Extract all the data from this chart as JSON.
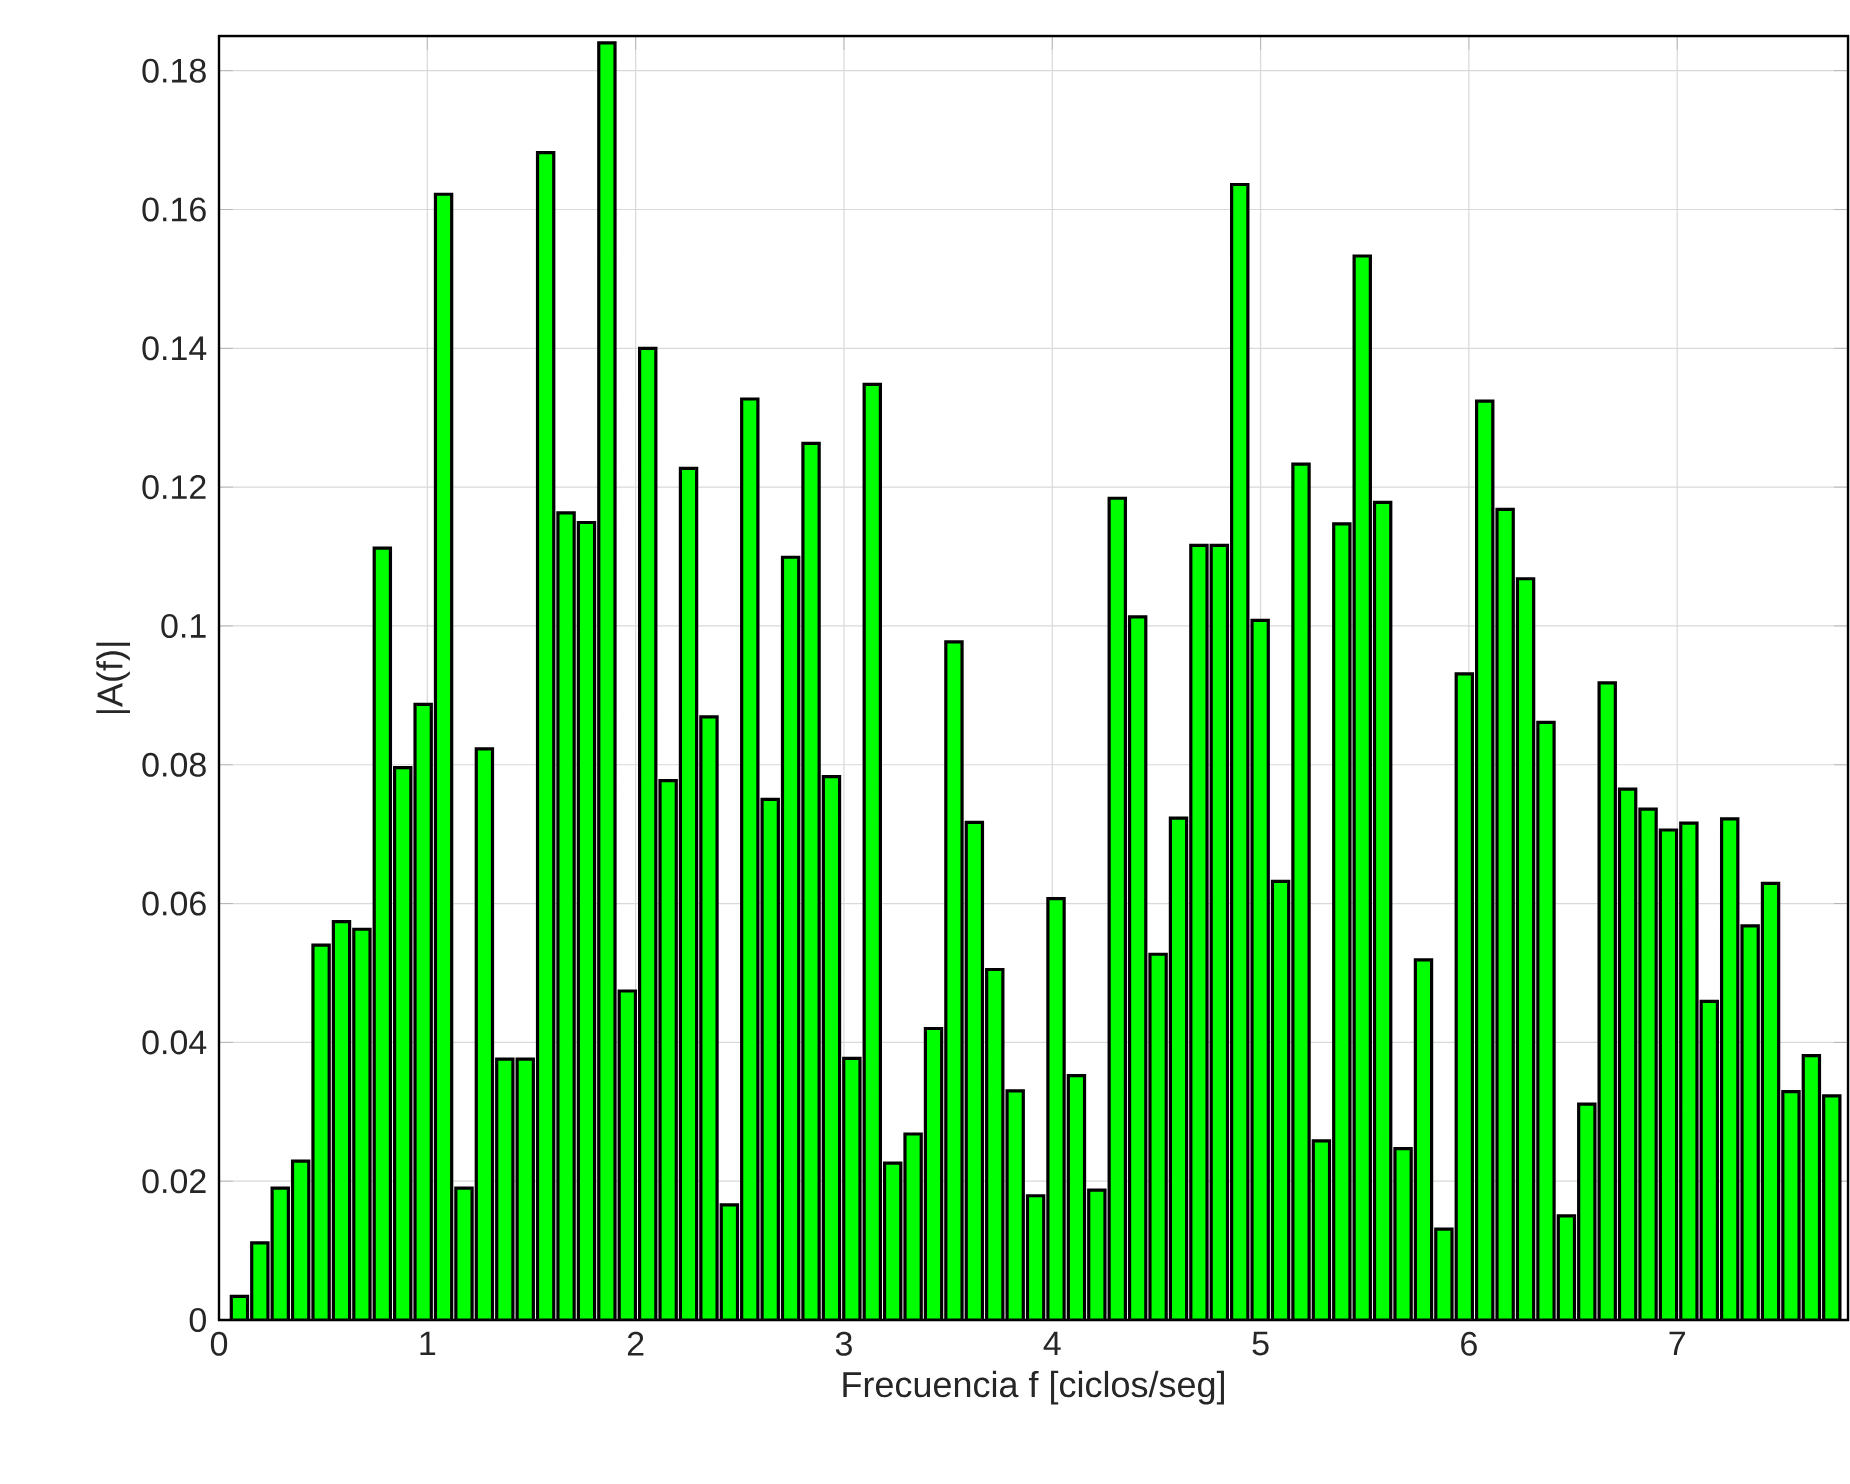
{
  "chart_data": {
    "type": "bar",
    "xlabel": "Frecuencia f [ciclos/seg]",
    "ylabel": "|A(f)|",
    "color": "#00ff00",
    "grid": true,
    "xlim": [
      0,
      7.82
    ],
    "ylim": [
      0,
      0.185
    ],
    "xticks": [
      0,
      1,
      2,
      3,
      4,
      5,
      6,
      7
    ],
    "yticks": [
      0,
      0.02,
      0.04,
      0.06,
      0.08,
      0.1,
      0.12,
      0.14,
      0.16,
      0.18
    ],
    "x": [
      0.098,
      0.196,
      0.294,
      0.392,
      0.49,
      0.588,
      0.686,
      0.784,
      0.882,
      0.98,
      1.078,
      1.176,
      1.274,
      1.372,
      1.47,
      1.568,
      1.666,
      1.764,
      1.862,
      1.96,
      2.058,
      2.156,
      2.254,
      2.352,
      2.45,
      2.548,
      2.646,
      2.744,
      2.842,
      2.94,
      3.038,
      3.136,
      3.234,
      3.332,
      3.43,
      3.528,
      3.626,
      3.724,
      3.822,
      3.92,
      4.018,
      4.116,
      4.214,
      4.312,
      4.41,
      4.508,
      4.606,
      4.704,
      4.802,
      4.9,
      4.998,
      5.096,
      5.194,
      5.292,
      5.39,
      5.488,
      5.586,
      5.684,
      5.782,
      5.88,
      5.978,
      6.076,
      6.174,
      6.272,
      6.37,
      6.468,
      6.566,
      6.664,
      6.762,
      6.86,
      6.958,
      7.056,
      7.154,
      7.252,
      7.35,
      7.448,
      7.546,
      7.644,
      7.742
    ],
    "values": [
      0.0034,
      0.0111,
      0.019,
      0.0229,
      0.054,
      0.0574,
      0.0563,
      0.1112,
      0.0796,
      0.0887,
      0.1622,
      0.019,
      0.0823,
      0.0376,
      0.0376,
      0.1682,
      0.1163,
      0.1149,
      0.184,
      0.0474,
      0.14,
      0.0777,
      0.1227,
      0.0869,
      0.0166,
      0.1327,
      0.075,
      0.1099,
      0.1263,
      0.0783,
      0.0377,
      0.1348,
      0.0226,
      0.0268,
      0.042,
      0.0977,
      0.0717,
      0.0505,
      0.033,
      0.0179,
      0.0607,
      0.0352,
      0.0187,
      0.1184,
      0.1013,
      0.0527,
      0.0723,
      0.1116,
      0.1116,
      0.1636,
      0.1008,
      0.0632,
      0.1233,
      0.0258,
      0.1147,
      0.1533,
      0.1178,
      0.0247,
      0.0519,
      0.0131,
      0.0931,
      0.1324,
      0.1168,
      0.1068,
      0.0861,
      0.015,
      0.0311,
      0.0918,
      0.0765,
      0.0736,
      0.0706,
      0.0716,
      0.0459,
      0.0722,
      0.0568,
      0.0629,
      0.0329,
      0.0381,
      0.0323
    ]
  }
}
